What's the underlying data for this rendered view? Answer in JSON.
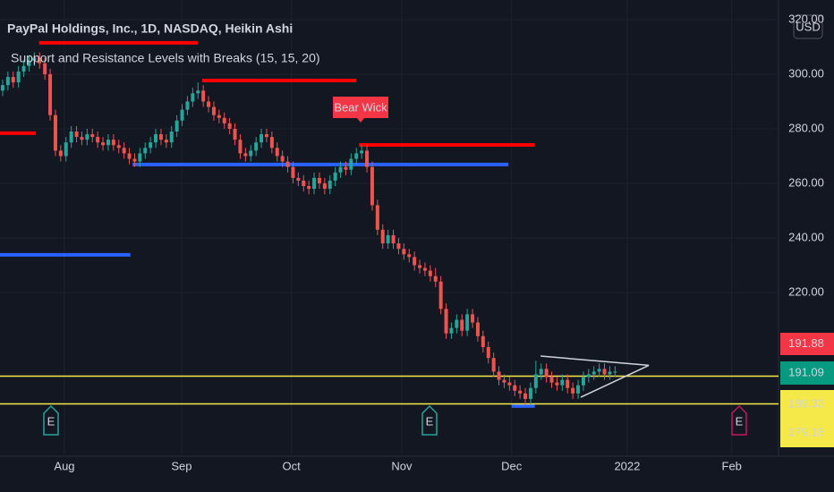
{
  "chart_data": {
    "type": "candlestick",
    "title": "PayPal Holdings, Inc., 1D, NASDAQ, Heikin Ashi",
    "subtitle": "Support and Resistance Levels with Breaks (15, 15, 20)",
    "currency": "USD",
    "annotation": "Bear Wick",
    "up_color": "#26a69a",
    "down_color": "#ef5350",
    "ylim": [
      160,
      327.2
    ],
    "yticks": [
      {
        "value": 220,
        "label": "220.00"
      },
      {
        "value": 240,
        "label": "240.00"
      },
      {
        "value": 260,
        "label": "260.00"
      },
      {
        "value": 280,
        "label": "280.00"
      },
      {
        "value": 300,
        "label": "300.00"
      },
      {
        "value": 320,
        "label": "320.00"
      }
    ],
    "xlim": [
      -0.5,
      146.96
    ],
    "xticks": [
      {
        "value": 11.7,
        "label": "Aug"
      },
      {
        "value": 33.9,
        "label": "Sep"
      },
      {
        "value": 54.7,
        "label": "Oct"
      },
      {
        "value": 75.6,
        "label": "Nov"
      },
      {
        "value": 96.4,
        "label": "Dec"
      },
      {
        "value": 118.3,
        "label": "2022"
      },
      {
        "value": 138.1,
        "label": "Feb"
      }
    ],
    "grid": true,
    "ohlc": [
      [
        294,
        298,
        292,
        296
      ],
      [
        296,
        301,
        294,
        299
      ],
      [
        299,
        301,
        295,
        297
      ],
      [
        297,
        303,
        295,
        301
      ],
      [
        301,
        305,
        299,
        303
      ],
      [
        303,
        307,
        301,
        305
      ],
      [
        305,
        308,
        303,
        306
      ],
      [
        306,
        308,
        302,
        304
      ],
      [
        304,
        306,
        298,
        300
      ],
      [
        300,
        302,
        283,
        285
      ],
      [
        285,
        287,
        270,
        272
      ],
      [
        272,
        274,
        268,
        270
      ],
      [
        270,
        277,
        268,
        275
      ],
      [
        275,
        281,
        273,
        279
      ],
      [
        279,
        281,
        275,
        277
      ],
      [
        277,
        279,
        274,
        276
      ],
      [
        276,
        280,
        274,
        278
      ],
      [
        278,
        280,
        275,
        277
      ],
      [
        277,
        279,
        273,
        275
      ],
      [
        275,
        277,
        272,
        274
      ],
      [
        274,
        278,
        272,
        276
      ],
      [
        276,
        278,
        272,
        274
      ],
      [
        274,
        276,
        271,
        273
      ],
      [
        273,
        275,
        269,
        271
      ],
      [
        271,
        273,
        267,
        269
      ],
      [
        269,
        271,
        266,
        268
      ],
      [
        268,
        273,
        266,
        271
      ],
      [
        271,
        275,
        269,
        273
      ],
      [
        273,
        277,
        271,
        275
      ],
      [
        275,
        280,
        273,
        278
      ],
      [
        278,
        280,
        274,
        276
      ],
      [
        276,
        278,
        273,
        275
      ],
      [
        275,
        281,
        273,
        279
      ],
      [
        279,
        285,
        277,
        283
      ],
      [
        283,
        289,
        281,
        287
      ],
      [
        287,
        292,
        285,
        290
      ],
      [
        290,
        295,
        288,
        293
      ],
      [
        293,
        297,
        291,
        294
      ],
      [
        294,
        296,
        288,
        290
      ],
      [
        290,
        292,
        286,
        288
      ],
      [
        288,
        290,
        283,
        285
      ],
      [
        285,
        287,
        282,
        284
      ],
      [
        284,
        286,
        280,
        282
      ],
      [
        282,
        284,
        278,
        280
      ],
      [
        280,
        282,
        274,
        276
      ],
      [
        276,
        278,
        269,
        271
      ],
      [
        271,
        273,
        268,
        270
      ],
      [
        270,
        274,
        268,
        272
      ],
      [
        272,
        277,
        270,
        275
      ],
      [
        275,
        280,
        273,
        278
      ],
      [
        278,
        280,
        275,
        277
      ],
      [
        277,
        279,
        271,
        273
      ],
      [
        273,
        275,
        268,
        270
      ],
      [
        270,
        272,
        266,
        268
      ],
      [
        268,
        270,
        264,
        266
      ],
      [
        266,
        268,
        260,
        262
      ],
      [
        262,
        264,
        259,
        261
      ],
      [
        261,
        263,
        257,
        259
      ],
      [
        259,
        261,
        256,
        258
      ],
      [
        258,
        264,
        256,
        262
      ],
      [
        262,
        264,
        258,
        260
      ],
      [
        260,
        262,
        256,
        258
      ],
      [
        258,
        263,
        256,
        261
      ],
      [
        261,
        266,
        259,
        264
      ],
      [
        264,
        268,
        262,
        266
      ],
      [
        266,
        268,
        263,
        265
      ],
      [
        265,
        271,
        263,
        269
      ],
      [
        269,
        273,
        267,
        271
      ],
      [
        271,
        274,
        269,
        272
      ],
      [
        272,
        274,
        264,
        266
      ],
      [
        266,
        268,
        250,
        252
      ],
      [
        252,
        254,
        241,
        243
      ],
      [
        243,
        245,
        236,
        238
      ],
      [
        238,
        243,
        236,
        241
      ],
      [
        241,
        243,
        236,
        238
      ],
      [
        238,
        240,
        234,
        236
      ],
      [
        236,
        238,
        232,
        234
      ],
      [
        234,
        236,
        231,
        233
      ],
      [
        233,
        235,
        228,
        230
      ],
      [
        230,
        232,
        227,
        229
      ],
      [
        229,
        231,
        226,
        228
      ],
      [
        228,
        230,
        224,
        226
      ],
      [
        226,
        229,
        222,
        224
      ],
      [
        224,
        226,
        212,
        214
      ],
      [
        214,
        216,
        203,
        205
      ],
      [
        205,
        209,
        203,
        207
      ],
      [
        207,
        212,
        205,
        210
      ],
      [
        210,
        212,
        204,
        206
      ],
      [
        206,
        214,
        204,
        212
      ],
      [
        212,
        214,
        207,
        209
      ],
      [
        209,
        211,
        202,
        204
      ],
      [
        204,
        206,
        198,
        200
      ],
      [
        200,
        202,
        194,
        196
      ],
      [
        196,
        198,
        189,
        191
      ],
      [
        191,
        193,
        186,
        188
      ],
      [
        188,
        190,
        185,
        187
      ],
      [
        187,
        189,
        184,
        186
      ],
      [
        186,
        188,
        182,
        184
      ],
      [
        184,
        186,
        181,
        183
      ],
      [
        183,
        185,
        179,
        181
      ],
      [
        181,
        187,
        179,
        185
      ],
      [
        185,
        195,
        183,
        190
      ],
      [
        190,
        194,
        188,
        192
      ],
      [
        192,
        194,
        187,
        189
      ],
      [
        189,
        191,
        185,
        187
      ],
      [
        187,
        189,
        184,
        186
      ],
      [
        186,
        190,
        184,
        188
      ],
      [
        188,
        190,
        183,
        185
      ],
      [
        185,
        187,
        181,
        183
      ],
      [
        183,
        188,
        181,
        186
      ],
      [
        186,
        191,
        184,
        189
      ],
      [
        189,
        192,
        187,
        190
      ],
      [
        190,
        193,
        188,
        191
      ],
      [
        191,
        194,
        189,
        192
      ],
      [
        192,
        194,
        188,
        190
      ],
      [
        190,
        193,
        188,
        191
      ],
      [
        191,
        193,
        189,
        191
      ]
    ],
    "levels": [
      {
        "value": 311.5,
        "start": 6.9,
        "end": 37,
        "color": "#ff0000"
      },
      {
        "value": 297.7,
        "start": 37.8,
        "end": 67,
        "color": "#ff0000"
      },
      {
        "value": 274.1,
        "start": 67.5,
        "end": 100.8,
        "color": "#ff0000"
      },
      {
        "value": 278.4,
        "start": -0.5,
        "end": 6.3,
        "color": "#ff0000"
      },
      {
        "value": 266.9,
        "start": 24.6,
        "end": 95.8,
        "color": "#2962ff"
      },
      {
        "value": 233.8,
        "start": -0.5,
        "end": 24.2,
        "color": "#2962ff"
      },
      {
        "value": 178.4,
        "start": 96.4,
        "end": 100.8,
        "color": "#2962ff"
      }
    ],
    "trendlines": [
      {
        "x": [
          101.9,
          122.4
        ],
        "y": [
          196.7,
          193.3
        ]
      },
      {
        "x": [
          109.5,
          122.4
        ],
        "y": [
          181.6,
          193.3
        ]
      }
    ],
    "price_labels": [
      {
        "value": 191.88,
        "color": "#f23645"
      },
      {
        "value": 191.09,
        "color": "#089981"
      },
      {
        "value": 189.33,
        "color": "#f5e94a",
        "line": true
      },
      {
        "value": 179.18,
        "color": "#f5e94a",
        "line": true
      }
    ],
    "events": [
      {
        "label": "E",
        "color": "#26a69a"
      },
      {
        "label": "E",
        "color": "#26a69a"
      },
      {
        "label": "E",
        "color": "#c2185b"
      }
    ]
  }
}
